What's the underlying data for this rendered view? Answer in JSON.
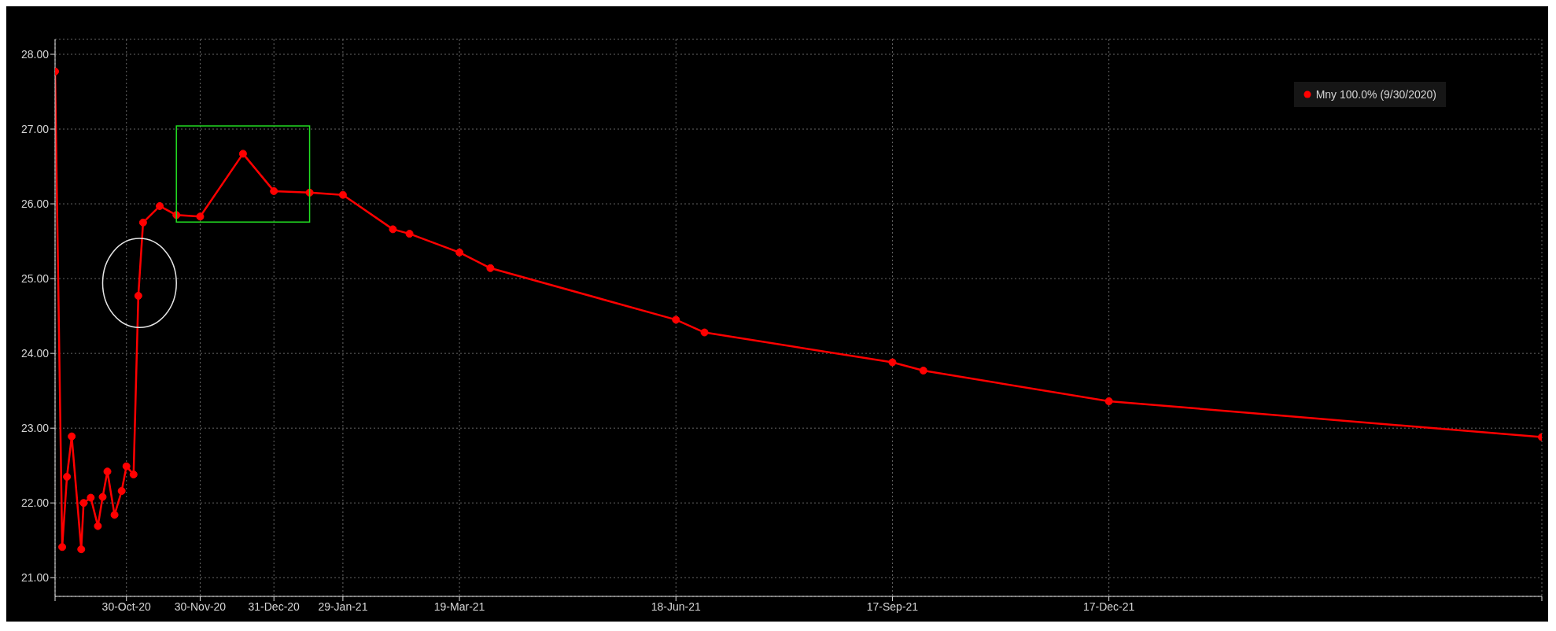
{
  "chart_data": {
    "type": "line",
    "x": [
      "2020-09-30",
      "2020-10-03",
      "2020-10-05",
      "2020-10-07",
      "2020-10-11",
      "2020-10-12",
      "2020-10-15",
      "2020-10-18",
      "2020-10-20",
      "2020-10-22",
      "2020-10-25",
      "2020-10-28",
      "2020-10-30",
      "2020-11-02",
      "2020-11-04",
      "2020-11-06",
      "2020-11-13",
      "2020-11-20",
      "2020-11-30",
      "2020-12-18",
      "2020-12-31",
      "2021-01-15",
      "2021-01-29",
      "2021-02-19",
      "2021-02-26",
      "2021-03-19",
      "2021-04-01",
      "2021-06-18",
      "2021-06-30",
      "2021-09-17",
      "2021-09-30",
      "2021-12-17",
      "2022-06-17"
    ],
    "series": [
      {
        "name": "Mny 100.0% (9/30/2020)",
        "color": "#ff0000",
        "values": [
          27.77,
          21.41,
          22.35,
          22.89,
          21.38,
          22.0,
          22.07,
          21.69,
          22.08,
          22.42,
          21.84,
          22.16,
          22.49,
          22.38,
          24.77,
          25.75,
          25.97,
          25.85,
          25.83,
          26.67,
          26.17,
          26.15,
          26.12,
          25.66,
          25.6,
          25.35,
          25.14,
          24.45,
          24.28,
          23.88,
          23.77,
          23.36,
          22.88
        ]
      }
    ],
    "xlim": [
      "2020-09-30",
      "2022-06-17"
    ],
    "xticks": [
      {
        "value": "2020-09-30",
        "label": null
      },
      {
        "value": "2020-10-30",
        "label": "30-Oct-20"
      },
      {
        "value": "2020-11-30",
        "label": "30-Nov-20"
      },
      {
        "value": "2020-12-31",
        "label": "31-Dec-20"
      },
      {
        "value": "2021-01-29",
        "label": "29-Jan-21"
      },
      {
        "value": "2021-03-19",
        "label": "19-Mar-21"
      },
      {
        "value": "2021-06-18",
        "label": "18-Jun-21"
      },
      {
        "value": "2021-09-17",
        "label": "17-Sep-21"
      },
      {
        "value": "2021-12-17",
        "label": "17-Dec-21"
      },
      {
        "value": "2022-06-17",
        "label": null
      }
    ],
    "ylim": [
      20.75,
      28.2
    ],
    "yticks": [
      {
        "value": 21,
        "label": "21.00"
      },
      {
        "value": 22,
        "label": "22.00"
      },
      {
        "value": 23,
        "label": "23.00"
      },
      {
        "value": 24,
        "label": "24.00"
      },
      {
        "value": 25,
        "label": "25.00"
      },
      {
        "value": 26,
        "label": "26.00"
      },
      {
        "value": 27,
        "label": "27.00"
      },
      {
        "value": 28,
        "label": "28.00"
      }
    ],
    "grid": true,
    "legend": "top right",
    "marker": "circle",
    "line_style": "solid"
  }
}
